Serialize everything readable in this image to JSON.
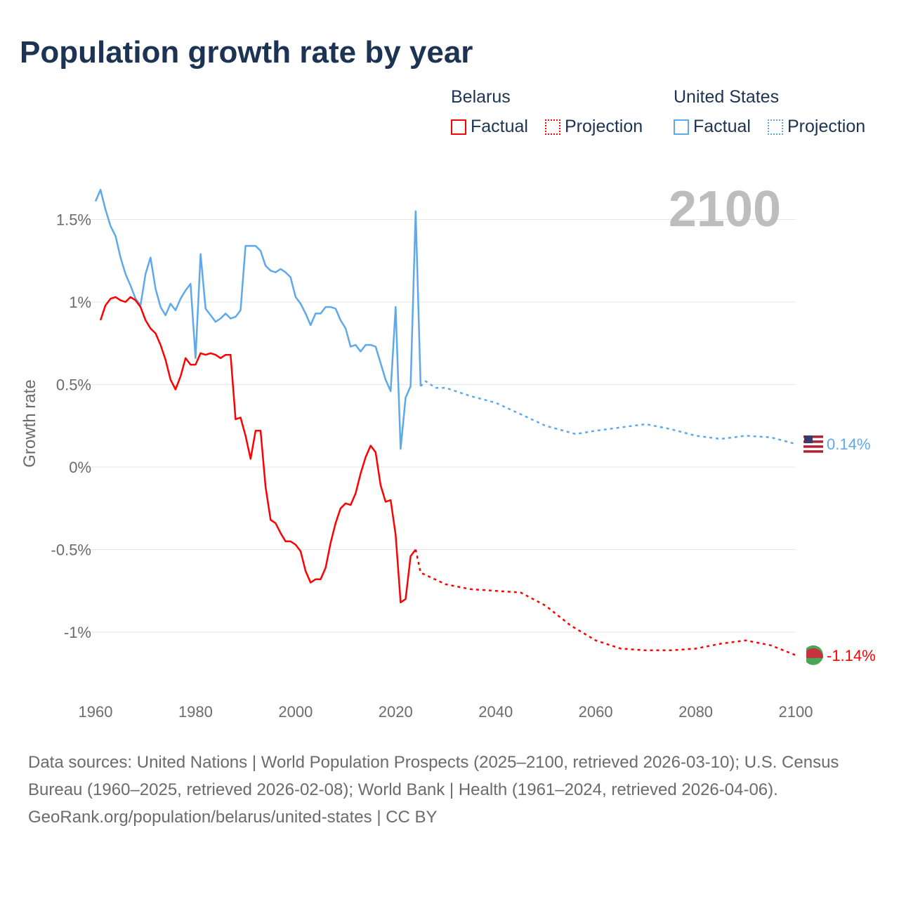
{
  "title": "Population growth rate by year",
  "legend": {
    "groups": [
      {
        "name": "Belarus",
        "color": "#ff0000",
        "factual": "Factual",
        "projection": "Projection"
      },
      {
        "name": "United States",
        "color": "#5ea8ec",
        "factual": "Factual",
        "projection": "Projection"
      }
    ]
  },
  "year_label": "2100",
  "footer": {
    "sources": "Data sources: United Nations | World Population Prospects (2025–2100, retrieved 2026-03-10); U.S. Census Bureau (1960–2025, retrieved 2026-02-08); World Bank | Health (1961–2024, retrieved 2026-04-06).",
    "credit": "GeoRank.org/population/belarus/united-states | CC BY"
  },
  "chart_data": {
    "type": "line",
    "title": "Population growth rate by year",
    "ylabel": "Growth rate",
    "xlabel": "",
    "xlim": [
      1960,
      2100
    ],
    "ylim": [
      -1.25,
      1.7
    ],
    "x_ticks": [
      "1960",
      "1980",
      "2000",
      "2020",
      "2040",
      "2060",
      "2080",
      "2100"
    ],
    "y_ticks": [
      {
        "v": 1.5,
        "label": "1.5%"
      },
      {
        "v": 1,
        "label": "1%"
      },
      {
        "v": 0.5,
        "label": "0.5%"
      },
      {
        "v": 0,
        "label": "0%"
      },
      {
        "v": -0.5,
        "label": "-0.5%"
      },
      {
        "v": -1,
        "label": "-1%"
      }
    ],
    "grid": true,
    "series": [
      {
        "name": "United States",
        "type": "factual",
        "color": "#5ea8ec",
        "end_label": "0.14%",
        "x_start": 1960,
        "values": [
          1.61,
          1.68,
          1.56,
          1.46,
          1.4,
          1.27,
          1.17,
          1.1,
          1.02,
          0.98,
          1.17,
          1.27,
          1.08,
          0.97,
          0.92,
          0.99,
          0.95,
          1.02,
          1.07,
          1.11,
          0.66,
          1.29,
          0.96,
          0.92,
          0.88,
          0.9,
          0.93,
          0.9,
          0.91,
          0.95,
          1.34,
          1.34,
          1.34,
          1.31,
          1.22,
          1.19,
          1.18,
          1.2,
          1.18,
          1.15,
          1.03,
          0.99,
          0.93,
          0.86,
          0.93,
          0.93,
          0.97,
          0.97,
          0.96,
          0.89,
          0.84,
          0.73,
          0.74,
          0.7,
          0.74,
          0.74,
          0.73,
          0.63,
          0.53,
          0.46,
          0.97,
          0.11,
          0.42,
          0.49,
          1.55,
          0.49
        ]
      },
      {
        "name": "United States",
        "type": "projection",
        "color": "#5ea8ec",
        "x": [
          2025,
          2026,
          2028,
          2030,
          2035,
          2040,
          2045,
          2050,
          2056,
          2060,
          2065,
          2070,
          2075,
          2080,
          2085,
          2090,
          2095,
          2100
        ],
        "values": [
          0.49,
          0.52,
          0.48,
          0.48,
          0.43,
          0.39,
          0.32,
          0.25,
          0.2,
          0.22,
          0.24,
          0.26,
          0.23,
          0.19,
          0.17,
          0.19,
          0.18,
          0.14
        ]
      },
      {
        "name": "Belarus",
        "type": "factual",
        "color": "#ff0000",
        "end_label": "-1.14%",
        "x_start": 1961,
        "values": [
          0.89,
          0.98,
          1.02,
          1.03,
          1.01,
          1.0,
          1.03,
          1.01,
          0.97,
          0.89,
          0.84,
          0.81,
          0.74,
          0.65,
          0.53,
          0.47,
          0.55,
          0.66,
          0.62,
          0.62,
          0.69,
          0.68,
          0.69,
          0.68,
          0.66,
          0.68,
          0.68,
          0.29,
          0.3,
          0.19,
          0.05,
          0.22,
          0.22,
          -0.12,
          -0.32,
          -0.34,
          -0.4,
          -0.45,
          -0.45,
          -0.47,
          -0.51,
          -0.63,
          -0.7,
          -0.68,
          -0.68,
          -0.61,
          -0.46,
          -0.34,
          -0.25,
          -0.22,
          -0.23,
          -0.16,
          -0.04,
          0.06,
          0.13,
          0.09,
          -0.11,
          -0.21,
          -0.2,
          -0.41,
          -0.82,
          -0.8,
          -0.54,
          -0.5
        ]
      },
      {
        "name": "Belarus",
        "type": "projection",
        "color": "#ff0000",
        "x": [
          2024,
          2025,
          2030,
          2035,
          2040,
          2045,
          2050,
          2055,
          2060,
          2065,
          2070,
          2075,
          2080,
          2085,
          2090,
          2095,
          2100
        ],
        "values": [
          -0.5,
          -0.64,
          -0.71,
          -0.74,
          -0.75,
          -0.76,
          -0.84,
          -0.96,
          -1.05,
          -1.1,
          -1.11,
          -1.11,
          -1.1,
          -1.07,
          -1.05,
          -1.08,
          -1.14
        ]
      }
    ]
  }
}
